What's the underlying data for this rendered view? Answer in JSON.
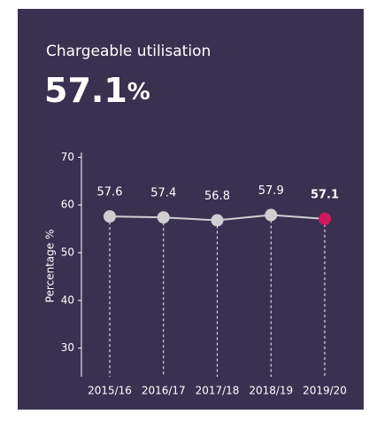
{
  "chart_data": {
    "type": "line",
    "title": "Chargeable utilisation",
    "headline": {
      "value": "57.1",
      "unit": "%"
    },
    "ylabel": "Percentage %",
    "categories": [
      "2015/16",
      "2016/17",
      "2017/18",
      "2018/19",
      "2019/20"
    ],
    "series": [
      {
        "color": "#cfcfd3",
        "point_colors": [
          "#cfcfd3",
          "#cfcfd3",
          "#cfcfd3",
          "#cfcfd3",
          "#d0185e"
        ],
        "values": [
          57.6,
          57.4,
          56.8,
          57.9,
          57.1
        ]
      }
    ],
    "ylim": [
      24,
      71
    ],
    "yticks": [
      30,
      40,
      50,
      60,
      70
    ],
    "background": "#3a3150"
  }
}
